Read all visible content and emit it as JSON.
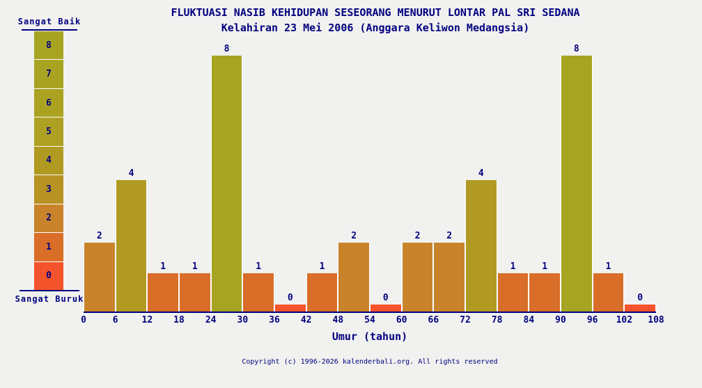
{
  "page": {
    "background_color": "#f1f1ef",
    "text_color": "#000080"
  },
  "legend": {
    "top_label": "Sangat Baik",
    "bottom_label": "Sangat Buruk",
    "levels": [
      8,
      7,
      6,
      5,
      4,
      3,
      2,
      1,
      0
    ]
  },
  "chart_data": {
    "type": "bar",
    "title": "FLUKTUASI NASIB KEHIDUPAN SESEORANG MENURUT LONTAR PAL SRI SEDANA",
    "subtitle": "Kelahiran 23 Mei 2006 (Anggara Keliwon Medangsia)",
    "xlabel": "Umur (tahun)",
    "ylabel": "",
    "x_ticks": [
      0,
      6,
      12,
      18,
      24,
      30,
      36,
      42,
      48,
      54,
      60,
      66,
      72,
      78,
      84,
      90,
      96,
      102,
      108
    ],
    "categories": [
      "0-6",
      "6-12",
      "12-18",
      "18-24",
      "24-30",
      "30-36",
      "36-42",
      "42-48",
      "48-54",
      "54-60",
      "60-66",
      "66-72",
      "72-78",
      "78-84",
      "84-90",
      "90-96",
      "96-102",
      "102-108"
    ],
    "values": [
      2,
      4,
      1,
      1,
      8,
      1,
      0,
      1,
      2,
      0,
      2,
      2,
      4,
      1,
      1,
      8,
      1,
      0
    ],
    "ylim": [
      0,
      8
    ],
    "grid": false,
    "legend_position": "left",
    "value_colors": {
      "0": "#f4532b",
      "1": "#d96e28",
      "2": "#c8832b",
      "3": "#b89222",
      "4": "#b19a21",
      "5": "#ada022",
      "6": "#aba222",
      "7": "#a9a322",
      "8": "#a6a421"
    }
  },
  "footer": "Copyright (c) 1996-2026 kalenderbali.org. All rights reserved"
}
